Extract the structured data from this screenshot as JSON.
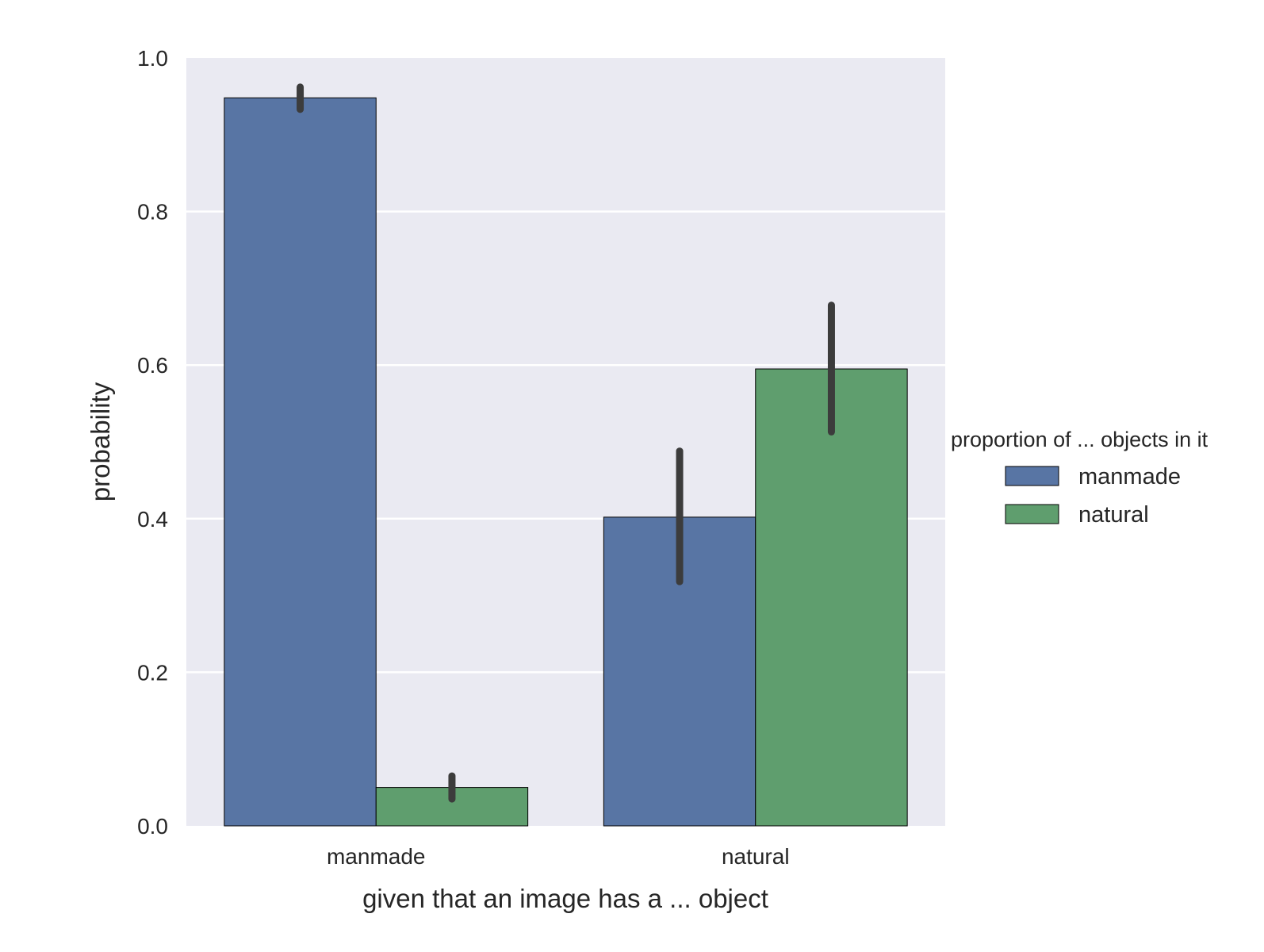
{
  "chart_data": {
    "type": "bar",
    "xlabel": "given that an image has a ... object",
    "ylabel": "probability",
    "categories": [
      "manmade",
      "natural"
    ],
    "ylim": [
      0.0,
      1.0
    ],
    "yticks": [
      "0.0",
      "0.2",
      "0.4",
      "0.6",
      "0.8",
      "1.0"
    ],
    "grid": true,
    "legend": {
      "title": "proportion of ... objects in it",
      "placement": "right"
    },
    "series": [
      {
        "name": "manmade",
        "color": "#5875a4",
        "values": [
          0.948,
          0.402
        ],
        "err_low": [
          0.933,
          0.318
        ],
        "err_high": [
          0.962,
          0.488
        ]
      },
      {
        "name": "natural",
        "color": "#5f9e6e",
        "values": [
          0.05,
          0.595
        ],
        "err_low": [
          0.035,
          0.513
        ],
        "err_high": [
          0.065,
          0.678
        ]
      }
    ]
  }
}
